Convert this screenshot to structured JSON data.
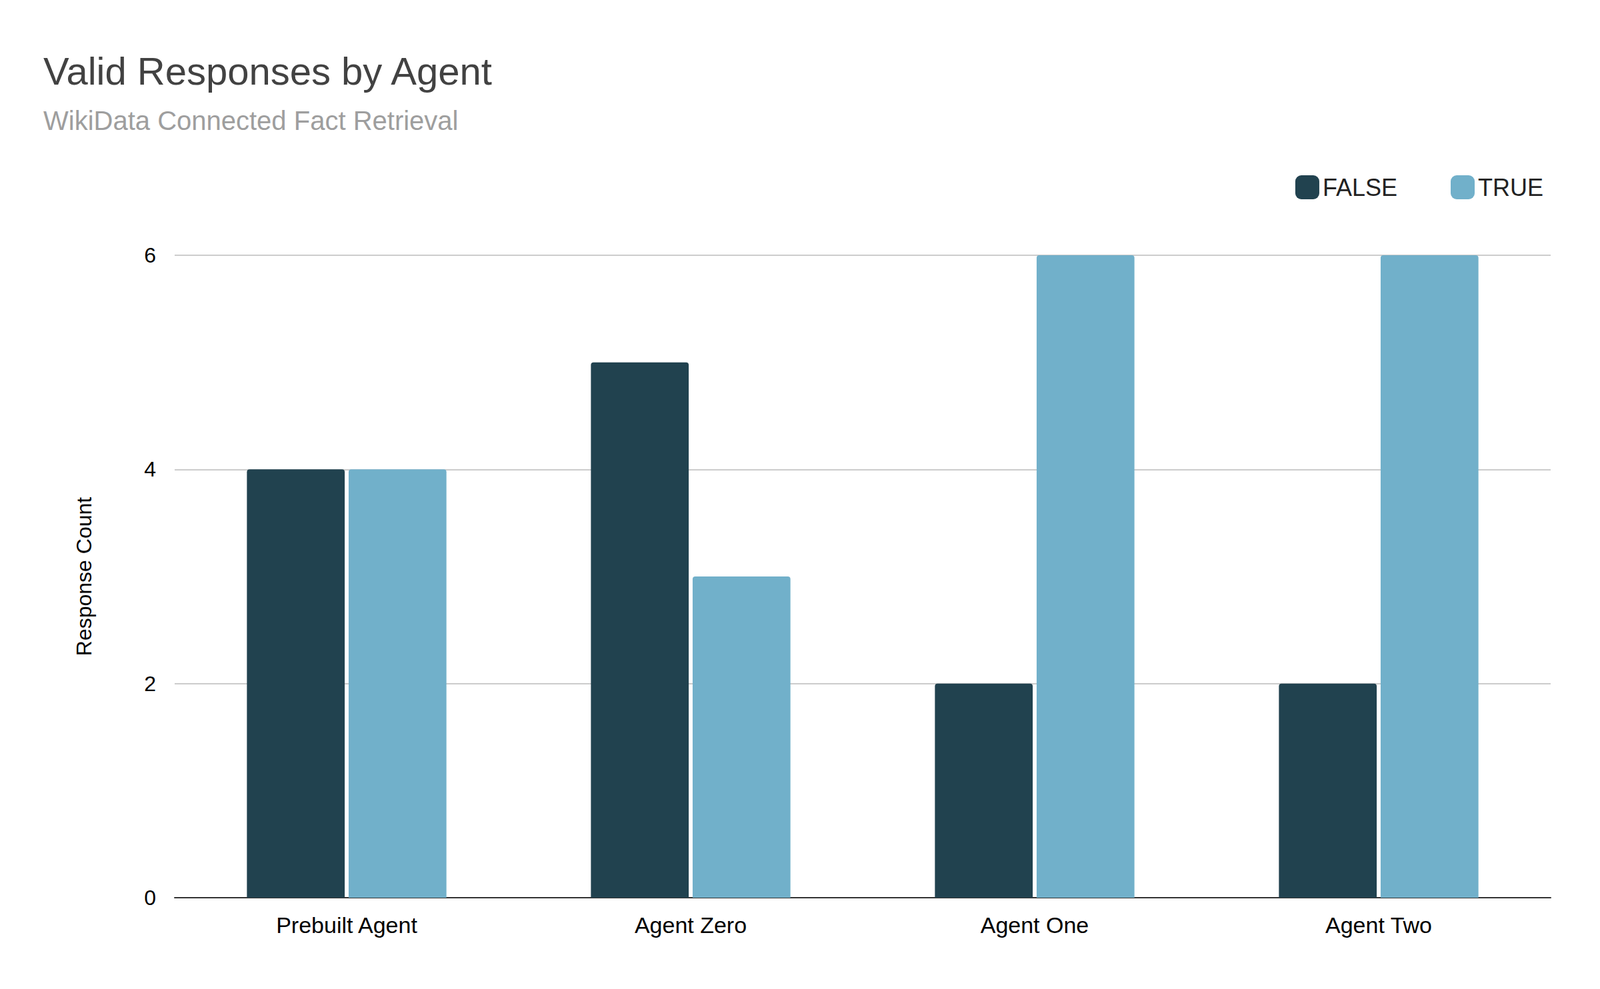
{
  "chart_data": {
    "type": "bar",
    "title": "Valid Responses by Agent",
    "subtitle": "WikiData Connected Fact Retrieval",
    "y_label": "Response Count",
    "categories": [
      "Prebuilt Agent",
      "Agent Zero",
      "Agent One",
      "Agent Two"
    ],
    "series": [
      {
        "name": "FALSE",
        "color": "#21424f",
        "values": [
          4,
          5,
          2,
          2
        ]
      },
      {
        "name": "TRUE",
        "color": "#71b0ca",
        "values": [
          4,
          3,
          6,
          6
        ]
      }
    ],
    "ylim": [
      0,
      6
    ],
    "yticks": [
      0,
      2,
      4,
      6
    ],
    "grid": true,
    "legend": "top-right"
  }
}
